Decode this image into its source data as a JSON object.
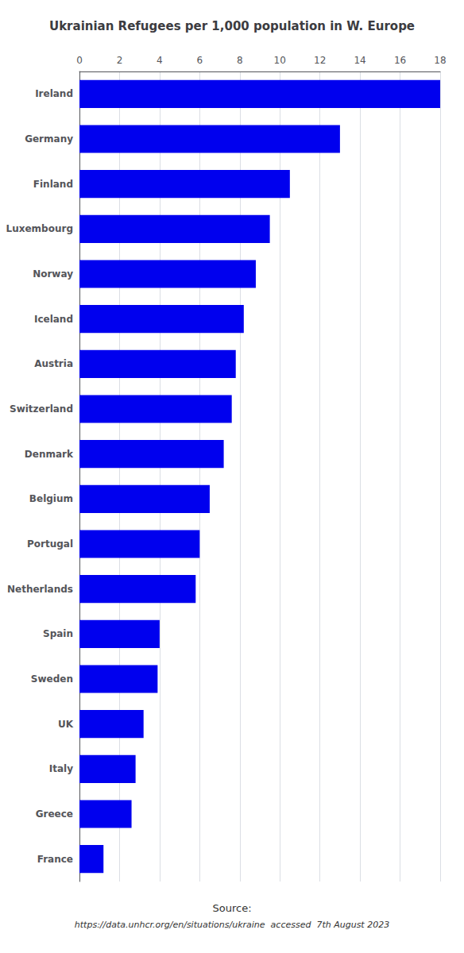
{
  "chart_data": {
    "type": "bar",
    "orientation": "horizontal",
    "title": "Ukrainian Refugees per 1,000 population in W. Europe",
    "categories": [
      "Ireland",
      "Germany",
      "Finland",
      "Luxembourg",
      "Norway",
      "Iceland",
      "Austria",
      "Switzerland",
      "Denmark",
      "Belgium",
      "Portugal",
      "Netherlands",
      "Spain",
      "Sweden",
      "UK",
      "Italy",
      "Greece",
      "France"
    ],
    "values": [
      18.0,
      13.0,
      10.5,
      9.5,
      8.8,
      8.2,
      7.8,
      7.6,
      7.2,
      6.5,
      6.0,
      5.8,
      4.0,
      3.9,
      3.2,
      2.8,
      2.6,
      1.2
    ],
    "color": "#0000ee",
    "xlim": [
      0,
      18
    ],
    "xticks": [
      0,
      2,
      4,
      6,
      8,
      10,
      12,
      14,
      16,
      18
    ],
    "grid": true,
    "annotations": [
      "Source:",
      "https://data.unhcr.org/en/situations/ukraine  accessed  7th August 2023"
    ]
  }
}
